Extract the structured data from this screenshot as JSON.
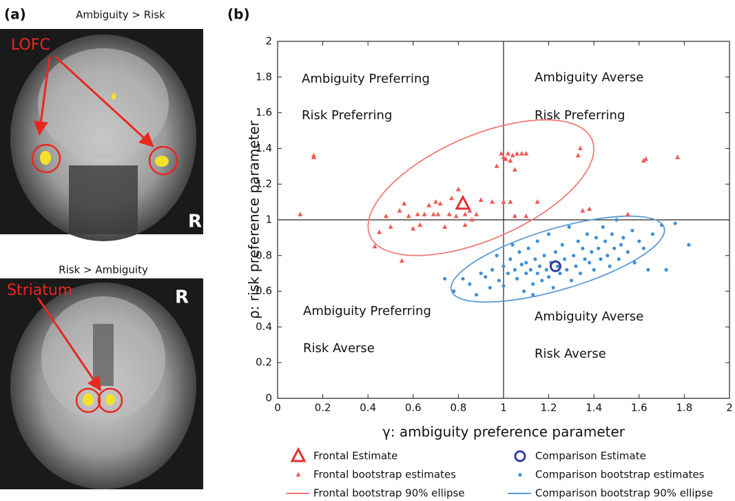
{
  "panel_a": {
    "label": "(a)",
    "top_image": {
      "title": "Ambiguity > Risk",
      "region": "LOFC",
      "side": "R"
    },
    "bottom_image": {
      "title": "Risk > Ambiguity",
      "region": "Striatum",
      "side": "R"
    }
  },
  "chart_data": {
    "type": "scatter",
    "panel_label": "(b)",
    "xlabel": "γ: ambiguity preference parameter",
    "ylabel": "ρ: risk preference parameter",
    "xlim": [
      0,
      2
    ],
    "ylim": [
      0,
      2
    ],
    "xticks": [
      0,
      0.2,
      0.4,
      0.6,
      0.8,
      1,
      1.2,
      1.4,
      1.6,
      1.8,
      2
    ],
    "yticks": [
      0,
      0.2,
      0.4,
      0.6,
      0.8,
      1,
      1.2,
      1.4,
      1.6,
      1.8,
      2
    ],
    "vlines": [
      1
    ],
    "hlines": [
      1
    ],
    "annotations": [
      "Ambiguity Preferring",
      "Risk Preferring",
      "Ambiguity Averse",
      "Risk Preferring",
      "Ambiguity Preferring",
      "Risk Averse",
      "Ambiguity Averse",
      "Risk Averse"
    ],
    "series": [
      {
        "name": "Frontal Estimate",
        "color": "#e0302c",
        "marker": "triangle-open",
        "x": [
          0.82
        ],
        "y": [
          1.09
        ]
      },
      {
        "name": "Frontal bootstrap estimates",
        "color": "#ee5a55",
        "marker": "triangle",
        "x": [
          0.1,
          0.16,
          0.16,
          0.43,
          0.45,
          0.48,
          0.5,
          0.54,
          0.55,
          0.56,
          0.58,
          0.6,
          0.62,
          0.63,
          0.65,
          0.67,
          0.69,
          0.7,
          0.71,
          0.72,
          0.74,
          0.76,
          0.77,
          0.79,
          0.8,
          0.83,
          0.85,
          0.86,
          0.88,
          0.9,
          0.95,
          0.97,
          0.99,
          1.0,
          1.01,
          1.02,
          1.03,
          1.04,
          1.05,
          1.06,
          1.03,
          1.05,
          1.08,
          1.1,
          1.15,
          1.1,
          1.33,
          1.34,
          1.35,
          1.38,
          1.55,
          1.62,
          1.63,
          1.77,
          1.0,
          0.83
        ],
        "y": [
          1.03,
          1.35,
          1.36,
          0.85,
          0.93,
          1.02,
          0.96,
          1.05,
          0.77,
          1.09,
          1.02,
          0.95,
          1.03,
          0.97,
          1.03,
          1.08,
          1.03,
          1.1,
          1.03,
          1.09,
          0.96,
          1.03,
          1.12,
          1.02,
          1.17,
          0.97,
          1.05,
          1.0,
          1.03,
          1.11,
          1.1,
          1.3,
          1.37,
          1.35,
          1.34,
          1.37,
          1.33,
          1.36,
          1.28,
          1.37,
          1.1,
          1.02,
          1.37,
          1.37,
          1.1,
          1.02,
          1.36,
          1.4,
          1.05,
          1.06,
          1.03,
          1.33,
          1.34,
          1.35,
          1.1,
          1.03
        ]
      },
      {
        "name": "Frontal bootstrap 90% ellipse",
        "color": "#f07a76",
        "marker": "ellipse",
        "center": [
          0.9,
          1.18
        ],
        "axes": [
          [
            0.47,
            0.31
          ],
          [
            -0.17,
            0.22
          ]
        ]
      },
      {
        "name": "Comparison Estimate",
        "color": "#2d3c9e",
        "marker": "circle-open",
        "x": [
          1.23
        ],
        "y": [
          0.74
        ]
      },
      {
        "name": "Comparison bootstrap estimates",
        "color": "#3f8fd6",
        "marker": "circle",
        "x": [
          0.74,
          0.78,
          0.82,
          0.85,
          0.88,
          0.9,
          0.92,
          0.94,
          0.95,
          0.97,
          0.98,
          1.0,
          1.0,
          1.02,
          1.03,
          1.04,
          1.05,
          1.06,
          1.07,
          1.08,
          1.09,
          1.1,
          1.1,
          1.11,
          1.12,
          1.13,
          1.14,
          1.15,
          1.15,
          1.16,
          1.17,
          1.18,
          1.19,
          1.2,
          1.2,
          1.21,
          1.22,
          1.23,
          1.24,
          1.25,
          1.26,
          1.27,
          1.28,
          1.29,
          1.3,
          1.31,
          1.32,
          1.33,
          1.34,
          1.35,
          1.36,
          1.37,
          1.38,
          1.39,
          1.4,
          1.41,
          1.42,
          1.43,
          1.44,
          1.45,
          1.46,
          1.47,
          1.48,
          1.49,
          1.5,
          1.51,
          1.52,
          1.53,
          1.55,
          1.57,
          1.58,
          1.6,
          1.62,
          1.64,
          1.66,
          1.7,
          1.72,
          1.76,
          1.82,
          1.13
        ],
        "y": [
          0.67,
          0.6,
          0.67,
          0.64,
          0.58,
          0.7,
          0.68,
          0.62,
          0.72,
          0.8,
          0.66,
          0.74,
          0.63,
          0.7,
          0.78,
          0.86,
          0.72,
          0.67,
          0.82,
          0.75,
          0.6,
          0.7,
          0.76,
          0.84,
          0.72,
          0.64,
          0.78,
          0.7,
          0.88,
          0.74,
          0.66,
          0.8,
          0.72,
          0.92,
          0.68,
          0.76,
          0.62,
          0.82,
          0.74,
          0.7,
          0.86,
          0.78,
          0.72,
          0.96,
          0.66,
          0.8,
          0.74,
          0.88,
          0.7,
          0.84,
          0.78,
          0.92,
          0.76,
          0.82,
          0.72,
          0.9,
          0.84,
          0.78,
          0.96,
          0.88,
          0.8,
          0.74,
          0.92,
          0.84,
          1.0,
          0.78,
          0.86,
          0.9,
          0.82,
          0.94,
          0.76,
          0.88,
          0.84,
          0.72,
          0.92,
          0.97,
          0.72,
          0.98,
          0.86,
          0.58
        ]
      },
      {
        "name": "Comparison bootstrap 90% ellipse",
        "color": "#5b9bd5",
        "marker": "ellipse",
        "center": [
          1.24,
          0.78
        ],
        "axes": [
          [
            0.47,
            0.18
          ],
          [
            -0.05,
            0.16
          ]
        ]
      }
    ]
  }
}
